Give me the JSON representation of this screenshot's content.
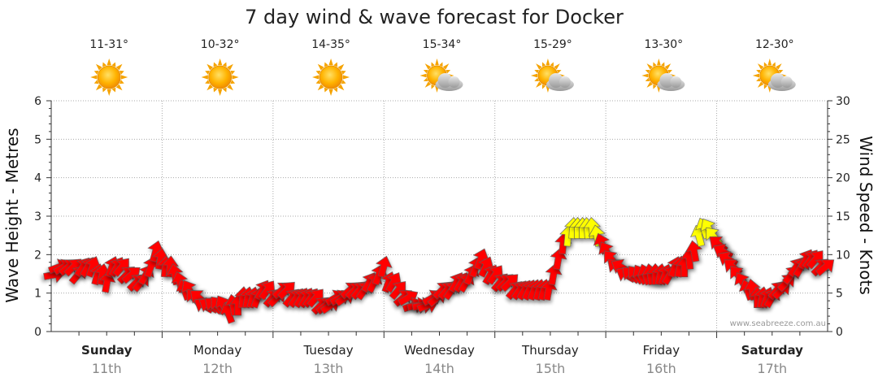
{
  "chart_data": {
    "type": "forecast-arrows",
    "title": "7 day wind & wave forecast for Docker",
    "y_left": {
      "label": "Wave Height - Metres",
      "range": [
        0,
        6
      ],
      "ticks": [
        "0",
        "1",
        "2",
        "3",
        "4",
        "5",
        "6"
      ]
    },
    "y_right": {
      "label": "Wind Speed - Knots",
      "range": [
        0,
        30
      ],
      "ticks": [
        "0",
        "5",
        "10",
        "15",
        "20",
        "25",
        "30"
      ]
    },
    "days": [
      {
        "name": "Sunday",
        "date": "11th",
        "bold": true,
        "temp": "11-31°",
        "weather": "sunny"
      },
      {
        "name": "Monday",
        "date": "12th",
        "bold": false,
        "temp": "10-32°",
        "weather": "sunny"
      },
      {
        "name": "Tuesday",
        "date": "13th",
        "bold": false,
        "temp": "14-35°",
        "weather": "sunny"
      },
      {
        "name": "Wednesday",
        "date": "14th",
        "bold": false,
        "temp": "15-34°",
        "weather": "partly-cloudy"
      },
      {
        "name": "Thursday",
        "date": "15th",
        "bold": false,
        "temp": "15-29°",
        "weather": "partly-cloudy"
      },
      {
        "name": "Friday",
        "date": "16th",
        "bold": false,
        "temp": "13-30°",
        "weather": "partly-cloudy"
      },
      {
        "name": "Saturday",
        "date": "17th",
        "bold": true,
        "temp": "12-30°",
        "weather": "partly-cloudy"
      }
    ],
    "wind_knots": [
      8,
      9,
      9,
      9,
      9,
      8,
      9,
      9,
      9,
      8,
      8,
      7,
      9,
      9,
      9,
      8,
      8,
      7,
      7,
      8,
      9,
      11,
      10,
      9,
      9,
      8,
      7,
      6,
      6,
      5,
      5,
      4,
      4,
      4,
      4,
      4,
      3,
      4,
      4,
      5,
      5,
      5,
      5,
      6,
      6,
      5,
      5,
      6,
      6,
      5,
      5,
      5,
      5,
      5,
      5,
      4,
      4,
      4,
      5,
      5,
      5,
      6,
      6,
      6,
      6,
      7,
      7,
      8,
      9,
      7,
      7,
      6,
      5,
      5,
      4,
      4,
      4,
      4,
      5,
      5,
      6,
      6,
      6,
      7,
      7,
      7,
      8,
      9,
      10,
      9,
      8,
      8,
      7,
      7,
      7,
      6,
      6,
      6,
      6,
      6,
      6,
      6,
      6,
      8,
      10,
      12,
      13,
      14,
      14,
      14,
      14,
      14,
      13,
      12,
      11,
      10,
      9,
      9,
      8,
      8,
      8,
      8,
      8,
      8,
      8,
      8,
      8,
      8,
      9,
      9,
      9,
      10,
      11,
      13,
      14,
      14,
      13,
      12,
      11,
      10,
      9,
      8,
      7,
      6,
      6,
      5,
      5,
      5,
      5,
      6,
      6,
      7,
      8,
      9,
      9,
      10,
      10,
      10,
      9,
      9
    ],
    "wind_dir_deg": [
      80,
      70,
      60,
      50,
      45,
      40,
      35,
      30,
      20,
      15,
      10,
      10,
      20,
      30,
      40,
      45,
      50,
      45,
      40,
      30,
      20,
      15,
      10,
      5,
      5,
      350,
      345,
      340,
      330,
      320,
      310,
      300,
      300,
      310,
      320,
      330,
      340,
      350,
      0,
      5,
      10,
      15,
      20,
      30,
      35,
      40,
      45,
      50,
      45,
      40,
      35,
      30,
      30,
      35,
      40,
      45,
      50,
      55,
      60,
      60,
      55,
      50,
      45,
      40,
      35,
      30,
      25,
      20,
      15,
      20,
      30,
      40,
      50,
      60,
      70,
      80,
      80,
      70,
      60,
      50,
      45,
      40,
      35,
      30,
      30,
      30,
      25,
      20,
      20,
      25,
      30,
      35,
      40,
      45,
      45,
      40,
      35,
      30,
      25,
      20,
      15,
      15,
      10,
      10,
      10,
      5,
      5,
      5,
      0,
      0,
      355,
      355,
      350,
      340,
      330,
      320,
      310,
      300,
      300,
      310,
      320,
      330,
      340,
      350,
      0,
      10,
      20,
      30,
      20,
      10,
      0,
      355,
      350,
      345,
      340,
      330,
      320,
      310,
      300,
      300,
      310,
      320,
      330,
      340,
      350,
      0,
      10,
      20,
      30,
      40,
      45,
      45,
      40,
      35,
      30,
      30,
      35,
      40,
      45,
      50
    ],
    "wind_color_threshold_knots": 13,
    "colors": {
      "wind_high": "#ffff00",
      "wind_normal": "#ff0000",
      "arrow_outline": "#555555",
      "grid": "#aaaaaa"
    }
  },
  "credit": "www.seabreeze.com.au"
}
